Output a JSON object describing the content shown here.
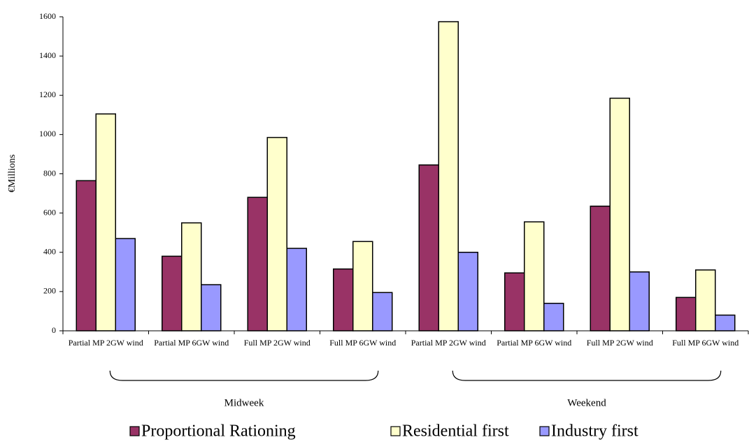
{
  "chart_data": {
    "type": "bar",
    "y_label": "€Millions",
    "categories": [
      "Partial MP 2GW wind",
      "Partial MP 6GW wind",
      "Full MP 2GW wind",
      "Full MP 6GW wind",
      "Partial MP 2GW wind",
      "Partial MP 6GW wind",
      "Full MP 2GW wind",
      "Full MP 6GW wind"
    ],
    "groups": [
      "Midweek",
      "Weekend"
    ],
    "series": [
      {
        "name": "Proportional Rationing",
        "color": "#993366",
        "values": [
          765,
          380,
          680,
          315,
          845,
          295,
          635,
          170
        ]
      },
      {
        "name": "Residential first",
        "color": "#ffffcc",
        "values": [
          1105,
          550,
          985,
          455,
          1575,
          555,
          1185,
          310
        ]
      },
      {
        "name": "Industry first",
        "color": "#9999ff",
        "values": [
          470,
          235,
          420,
          195,
          400,
          140,
          300,
          80
        ]
      }
    ],
    "ylim": [
      0,
      1600
    ],
    "yticks": [
      0,
      200,
      400,
      600,
      800,
      1000,
      1200,
      1400,
      1600
    ],
    "grid": false
  }
}
